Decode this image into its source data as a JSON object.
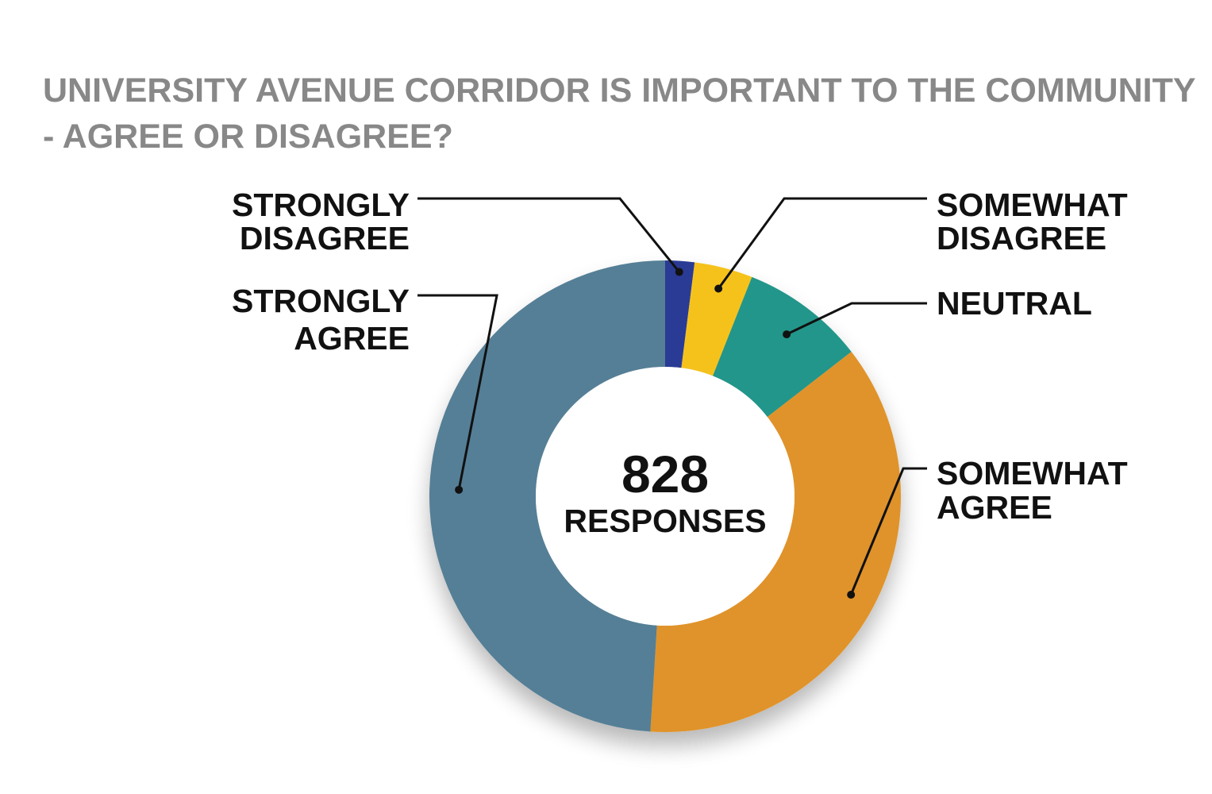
{
  "chart_data": {
    "type": "pie",
    "variant": "donut",
    "title_lines": [
      "UNIVERSITY AVENUE CORRIDOR IS IMPORTANT TO THE COMMUNITY",
      "- AGREE OR DISAGREE?"
    ],
    "center": {
      "value": "828",
      "label": "RESPONSES"
    },
    "slices": [
      {
        "key": "strongly-disagree",
        "label_lines": [
          "STRONGLY",
          "DISAGREE"
        ],
        "value": 2.0,
        "color": "#2a3b95"
      },
      {
        "key": "somewhat-disagree",
        "label_lines": [
          "SOMEWHAT",
          "DISAGREE"
        ],
        "value": 4.0,
        "color": "#f5c21b"
      },
      {
        "key": "neutral",
        "label_lines": [
          "NEUTRAL"
        ],
        "value": 8.5,
        "color": "#23968a"
      },
      {
        "key": "somewhat-agree",
        "label_lines": [
          "SOMEWHAT",
          "AGREE"
        ],
        "value": 36.5,
        "color": "#e0932a"
      },
      {
        "key": "strongly-agree",
        "label_lines": [
          "STRONGLY",
          "AGREE"
        ],
        "value": 49.0,
        "color": "#557f96"
      }
    ],
    "legend": "callout-labels"
  }
}
